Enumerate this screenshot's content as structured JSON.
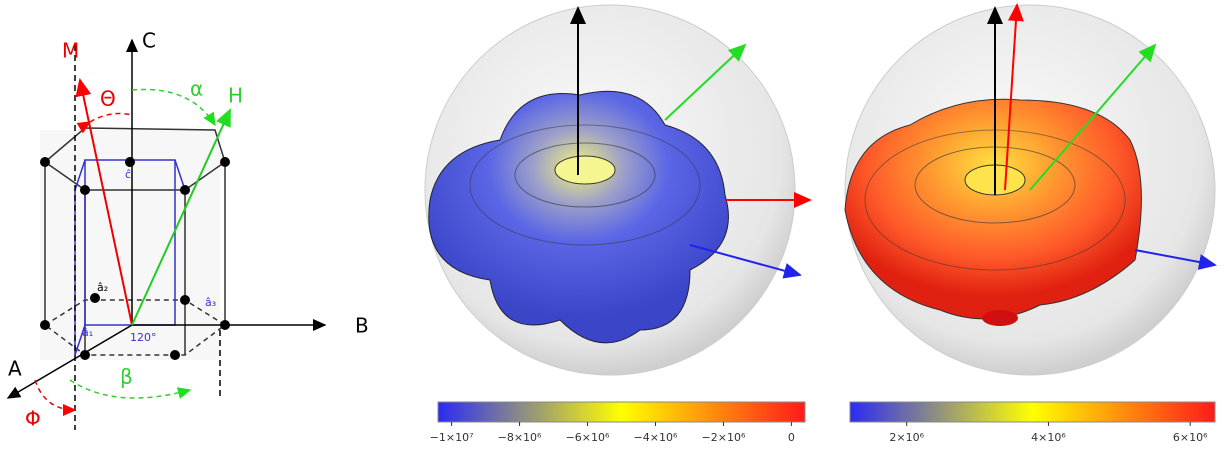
{
  "diagram": {
    "labels": {
      "m": "M",
      "c": "C",
      "theta": "Θ",
      "alpha": "α",
      "h": "H",
      "b": "B",
      "a": "A",
      "beta": "β",
      "phi": "Φ",
      "angle": "120°",
      "c_hat": "ĉ",
      "a1_hat": "â₁",
      "a2_hat": "â₂",
      "a3_hat": "â₃"
    }
  },
  "colorbars": [
    {
      "lim": [
        -10400000,
        400000
      ],
      "colors": [
        "#2b2bf5",
        "#ffff00",
        "#ff1a1a"
      ],
      "ticks": [
        {
          "value": -10000000,
          "label": "−1×10⁷"
        },
        {
          "value": -8000000,
          "label": "−8×10⁶"
        },
        {
          "value": -6000000,
          "label": "−6×10⁶"
        },
        {
          "value": -4000000,
          "label": "−4×10⁶"
        },
        {
          "value": -2000000,
          "label": "−2×10⁶"
        },
        0
      ]
    },
    {
      "lim": [
        1200000,
        6350000
      ],
      "colors": [
        "#2b2bf5",
        "#ffff00",
        "#ff1a1a"
      ],
      "ticks": [
        {
          "value": 2000000,
          "label": "2×10⁶"
        },
        {
          "value": 4000000,
          "label": "4×10⁶"
        },
        {
          "value": 6000000,
          "label": "6×10⁶"
        }
      ]
    }
  ]
}
